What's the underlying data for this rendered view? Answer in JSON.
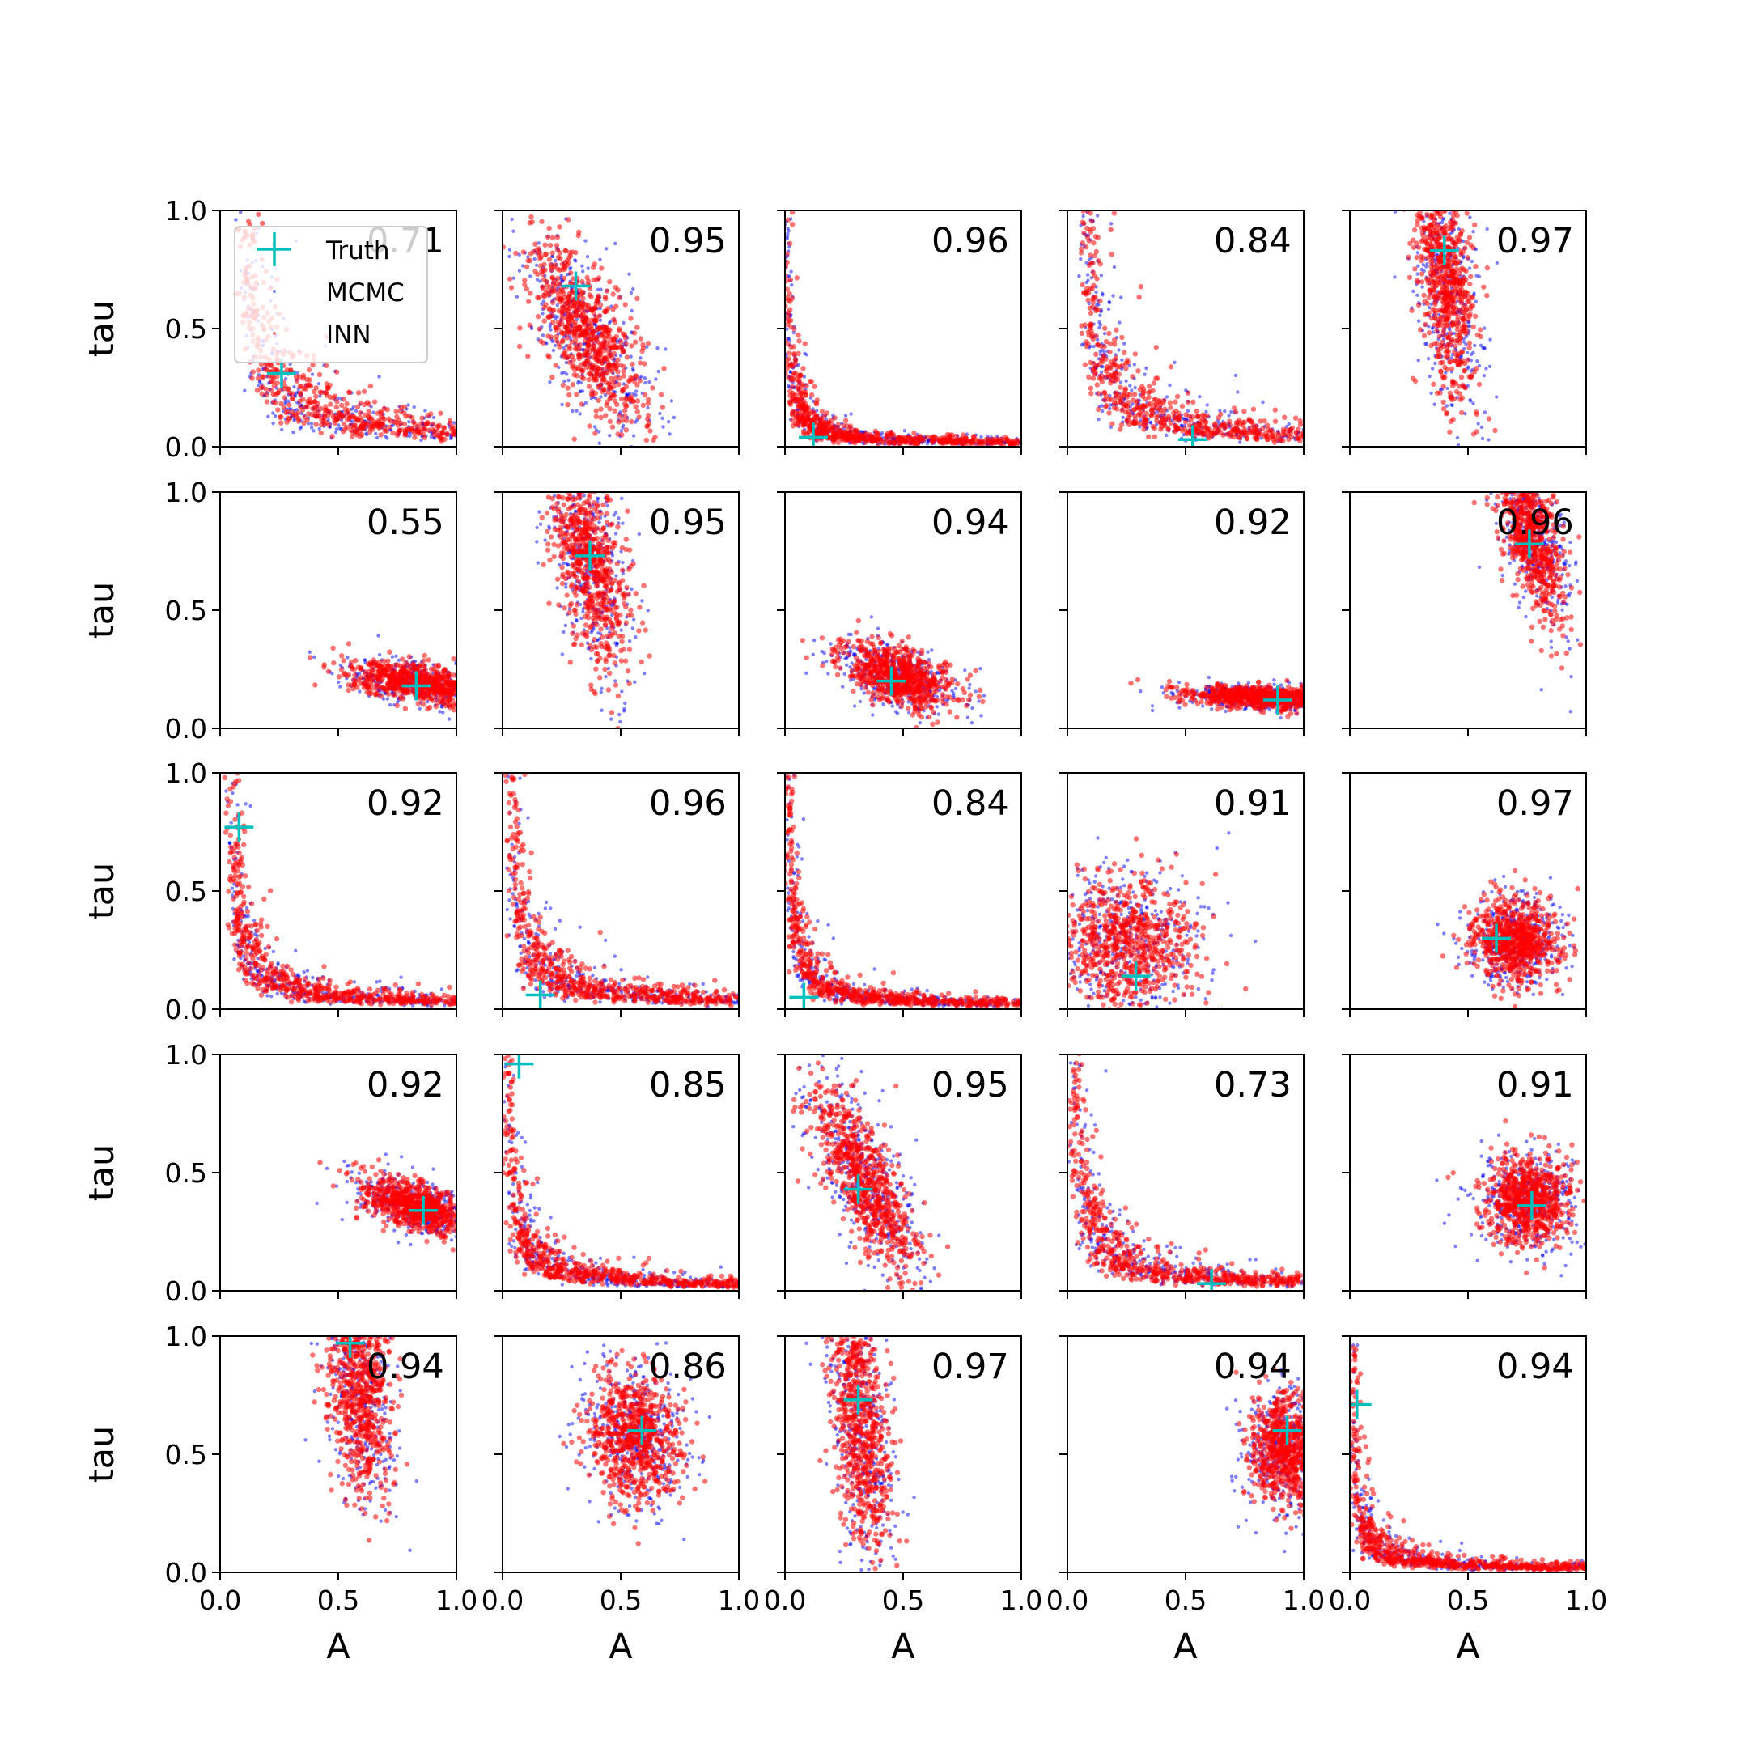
{
  "chart_data": {
    "type": "scatter",
    "grid_rows": 5,
    "grid_cols": 5,
    "xlabel": "A",
    "ylabel": "tau",
    "xlim": [
      0,
      1
    ],
    "ylim": [
      0,
      1
    ],
    "x_ticks": [
      "0.0",
      "0.5",
      "1.0"
    ],
    "y_ticks": [
      "0.0",
      "0.5",
      "1.0"
    ],
    "grid": false,
    "legend": {
      "placement": "upper-left of first panel",
      "entries": [
        "Truth",
        "MCMC",
        "INN"
      ]
    },
    "colors": {
      "truth": "#00bfbf",
      "mcmc": "#0000ff",
      "inn": "#ff0000"
    },
    "panels": [
      {
        "score": "0.71",
        "truth": [
          0.26,
          0.31
        ],
        "shape": "l",
        "k": 0.055,
        "x0": 0.05,
        "y0": 0.0
      },
      {
        "score": "0.95",
        "truth": [
          0.31,
          0.68
        ],
        "shape": "ellipse",
        "cx": 0.36,
        "cy": 0.47,
        "rx": 0.09,
        "ry": 0.22,
        "tilt": 0.5
      },
      {
        "score": "0.96",
        "truth": [
          0.12,
          0.04
        ],
        "shape": "l",
        "k": 0.01,
        "x0": 0.0,
        "y0": 0.0
      },
      {
        "score": "0.84",
        "truth": [
          0.53,
          0.03
        ],
        "shape": "l",
        "k": 0.045,
        "x0": 0.03,
        "y0": 0.0
      },
      {
        "score": "0.97",
        "truth": [
          0.4,
          0.83
        ],
        "shape": "ellipse",
        "cx": 0.41,
        "cy": 0.72,
        "rx": 0.06,
        "ry": 0.28,
        "tilt": 0.1
      },
      {
        "score": "0.55",
        "truth": [
          0.83,
          0.18
        ],
        "shape": "ellipse",
        "cx": 0.85,
        "cy": 0.19,
        "rx": 0.16,
        "ry": 0.04,
        "tilt": -0.15
      },
      {
        "score": "0.95",
        "truth": [
          0.37,
          0.73
        ],
        "shape": "ellipse",
        "cx": 0.37,
        "cy": 0.72,
        "rx": 0.07,
        "ry": 0.25,
        "tilt": 0.2
      },
      {
        "score": "0.94",
        "truth": [
          0.45,
          0.2
        ],
        "shape": "ellipse",
        "cx": 0.48,
        "cy": 0.22,
        "rx": 0.13,
        "ry": 0.06,
        "tilt": -0.35
      },
      {
        "score": "0.92",
        "truth": [
          0.89,
          0.12
        ],
        "shape": "ellipse",
        "cx": 0.82,
        "cy": 0.13,
        "rx": 0.16,
        "ry": 0.025,
        "tilt": -0.05
      },
      {
        "score": "0.96",
        "truth": [
          0.76,
          0.78
        ],
        "shape": "ellipse",
        "cx": 0.77,
        "cy": 0.82,
        "rx": 0.06,
        "ry": 0.2,
        "tilt": 0.25
      },
      {
        "score": "0.92",
        "truth": [
          0.08,
          0.77
        ],
        "shape": "l",
        "k": 0.025,
        "x0": 0.02,
        "y0": 0.0
      },
      {
        "score": "0.96",
        "truth": [
          0.16,
          0.06
        ],
        "shape": "l",
        "k": 0.03,
        "x0": 0.0,
        "y0": 0.0
      },
      {
        "score": "0.84",
        "truth": [
          0.08,
          0.05
        ],
        "shape": "l",
        "k": 0.015,
        "x0": 0.0,
        "y0": 0.0
      },
      {
        "score": "0.91",
        "truth": [
          0.29,
          0.14
        ],
        "shape": "ellipse",
        "cx": 0.25,
        "cy": 0.28,
        "rx": 0.15,
        "ry": 0.15,
        "tilt": -0.6
      },
      {
        "score": "0.97",
        "truth": [
          0.62,
          0.3
        ],
        "shape": "ellipse",
        "cx": 0.7,
        "cy": 0.29,
        "rx": 0.1,
        "ry": 0.09,
        "tilt": -0.3
      },
      {
        "score": "0.92",
        "truth": [
          0.86,
          0.34
        ],
        "shape": "ellipse",
        "cx": 0.83,
        "cy": 0.36,
        "rx": 0.12,
        "ry": 0.05,
        "tilt": -0.3
      },
      {
        "score": "0.85",
        "truth": [
          0.07,
          0.96
        ],
        "shape": "l",
        "k": 0.02,
        "x0": 0.0,
        "y0": 0.0
      },
      {
        "score": "0.95",
        "truth": [
          0.31,
          0.43
        ],
        "shape": "ellipse",
        "cx": 0.35,
        "cy": 0.45,
        "rx": 0.07,
        "ry": 0.22,
        "tilt": 0.45
      },
      {
        "score": "0.73",
        "truth": [
          0.61,
          0.03
        ],
        "shape": "l",
        "k": 0.03,
        "x0": 0.0,
        "y0": 0.0
      },
      {
        "score": "0.91",
        "truth": [
          0.77,
          0.36
        ],
        "shape": "ellipse",
        "cx": 0.76,
        "cy": 0.39,
        "rx": 0.1,
        "ry": 0.1,
        "tilt": 0.0
      },
      {
        "score": "0.94",
        "truth": [
          0.55,
          0.97
        ],
        "shape": "ellipse",
        "cx": 0.59,
        "cy": 0.78,
        "rx": 0.07,
        "ry": 0.25,
        "tilt": 0.1
      },
      {
        "score": "0.86",
        "truth": [
          0.59,
          0.6
        ],
        "shape": "ellipse",
        "cx": 0.56,
        "cy": 0.58,
        "rx": 0.1,
        "ry": 0.14,
        "tilt": 0.2
      },
      {
        "score": "0.97",
        "truth": [
          0.31,
          0.73
        ],
        "shape": "ellipse",
        "cx": 0.32,
        "cy": 0.66,
        "rx": 0.06,
        "ry": 0.3,
        "tilt": 0.1
      },
      {
        "score": "0.94",
        "truth": [
          0.93,
          0.6
        ],
        "shape": "ellipse",
        "cx": 0.92,
        "cy": 0.52,
        "rx": 0.08,
        "ry": 0.12,
        "tilt": 0.0
      },
      {
        "score": "0.94",
        "truth": [
          0.03,
          0.71
        ],
        "shape": "l",
        "k": 0.012,
        "x0": 0.0,
        "y0": 0.0
      }
    ]
  }
}
